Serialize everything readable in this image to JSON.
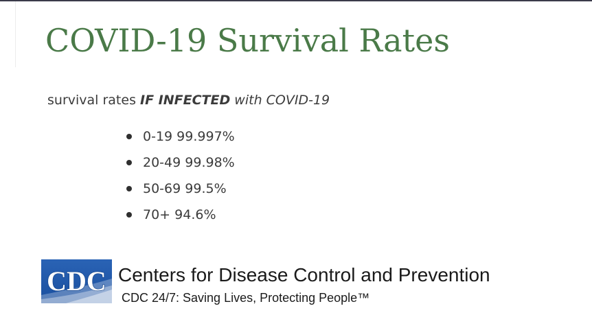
{
  "title": "COVID-19 Survival Rates",
  "subtitle": {
    "prefix": "survival rates ",
    "emphasis": "IF INFECTED",
    "suffix": " with COVID-19"
  },
  "rates": [
    {
      "age_group": "0-19",
      "rate": "99.997%"
    },
    {
      "age_group": "20-49",
      "rate": "99.98%"
    },
    {
      "age_group": "50-69",
      "rate": "99.5%"
    },
    {
      "age_group": "70+",
      "rate": "94.6%"
    }
  ],
  "organization": {
    "logo_text": "CDC",
    "name": "Centers for Disease Control and Prevention",
    "tagline": "CDC 24/7: Saving Lives, Protecting People™"
  },
  "colors": {
    "title": "#4a7a48",
    "logo_blue": "#1f56a8"
  }
}
